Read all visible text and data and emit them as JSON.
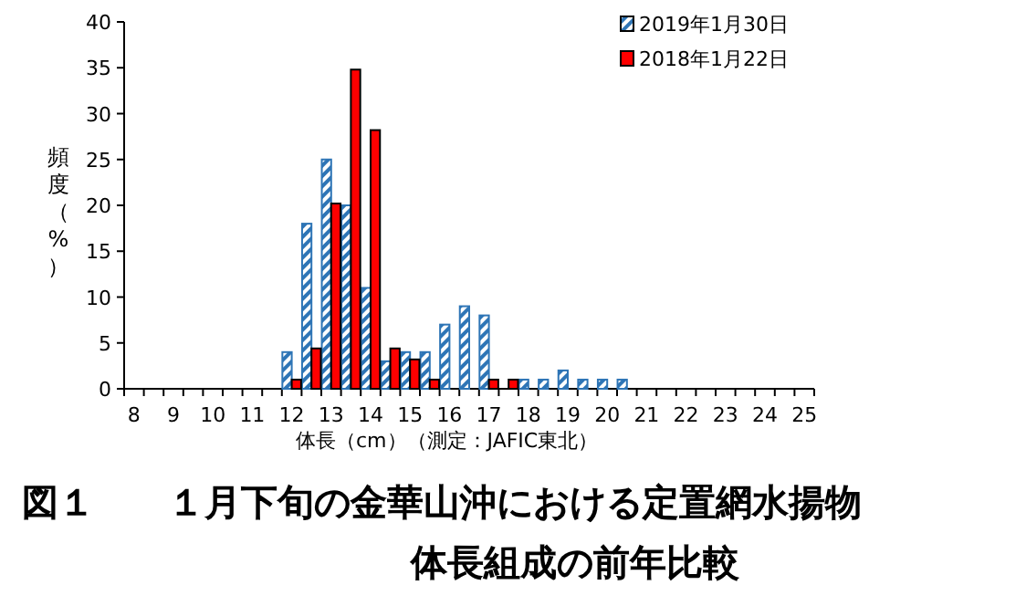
{
  "chart_data": {
    "type": "bar",
    "title": "図１　　１月下旬の金華山沖における定置網水揚物",
    "subtitle": "体長組成の前年比較",
    "xlabel": "体長（cm）（測定：JAFIC東北）",
    "ylabel": "頻度（%）",
    "categories": [
      "8",
      null,
      "9",
      null,
      "10",
      null,
      "11",
      null,
      "12",
      null,
      "13",
      null,
      "14",
      null,
      "15",
      null,
      "16",
      null,
      "17",
      null,
      "18",
      null,
      "19",
      null,
      "20",
      null,
      "21",
      null,
      "22",
      null,
      "23",
      null,
      "24",
      null,
      "25"
    ],
    "series": [
      {
        "name": "2019年1月30日",
        "color": "#2e75b6",
        "values": [
          0,
          0,
          0,
          0,
          0,
          0,
          0,
          0,
          4,
          18,
          25,
          20,
          11,
          3,
          4,
          4,
          7,
          9,
          8,
          0,
          1,
          1,
          2,
          1,
          1,
          1,
          0,
          0,
          0,
          0,
          0,
          0,
          0,
          0,
          0
        ]
      },
      {
        "name": "2018年1月22日",
        "color": "#ff0000",
        "values": [
          0,
          0,
          0,
          0,
          0,
          0,
          0,
          0,
          1,
          4.4,
          20.2,
          34.8,
          28.2,
          4.4,
          3.2,
          1,
          0,
          0,
          1,
          1,
          0,
          0,
          0,
          0,
          0,
          0,
          0,
          0,
          0,
          0,
          0,
          0,
          0,
          0,
          0
        ]
      }
    ],
    "ylim": [
      0,
      40
    ],
    "yticks": [
      0,
      5,
      10,
      15,
      20,
      25,
      30,
      35,
      40
    ],
    "grid": false,
    "legend": "top right"
  }
}
